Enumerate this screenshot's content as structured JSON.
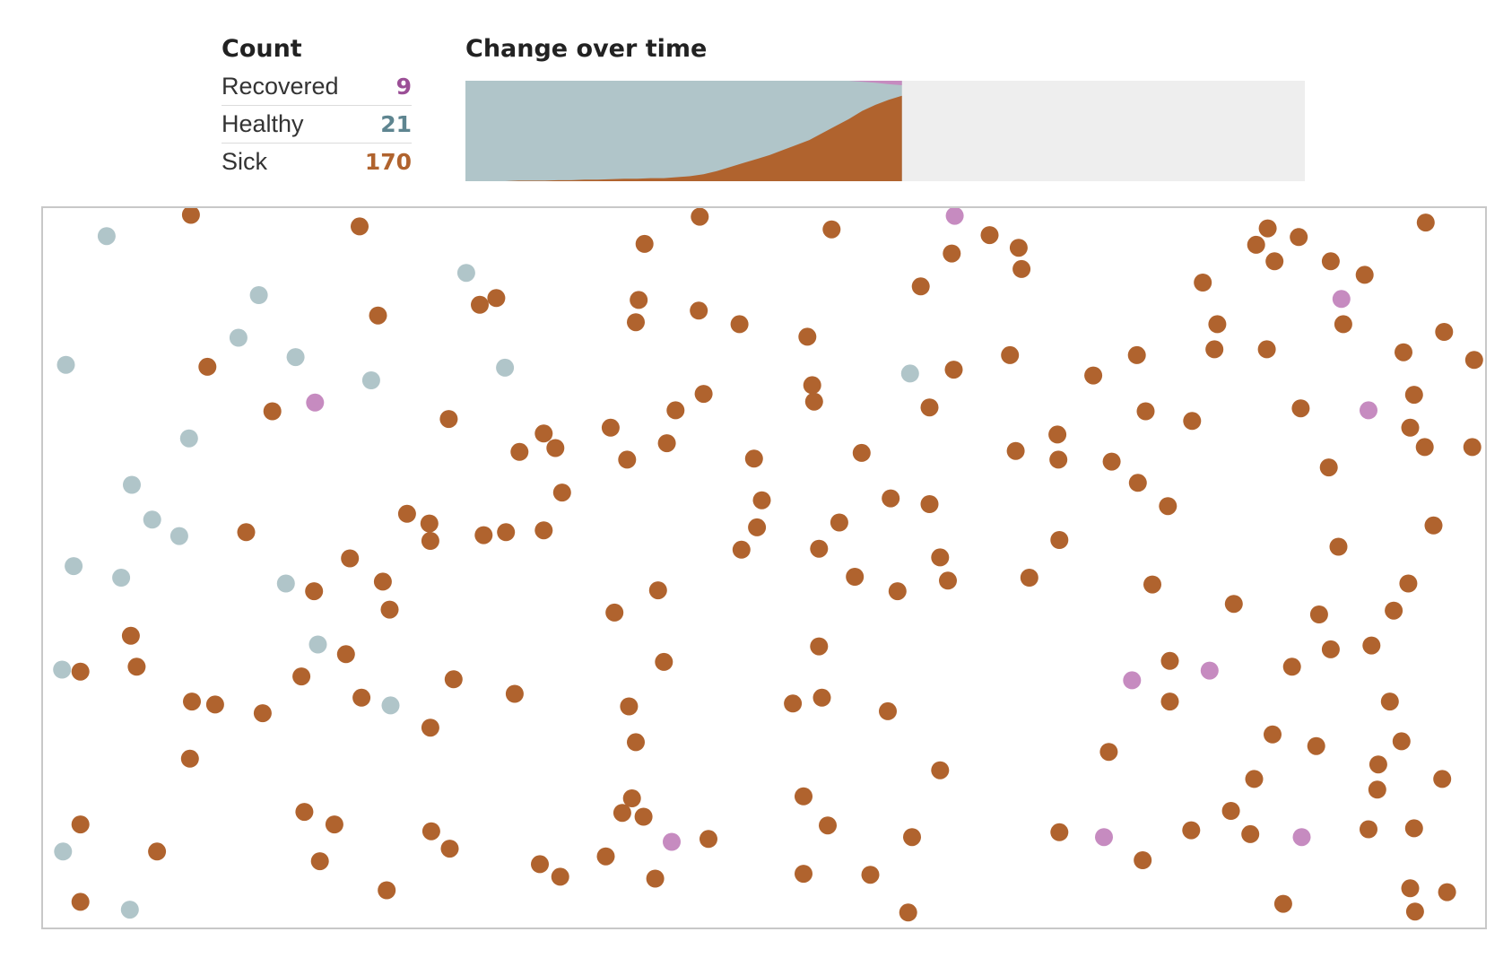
{
  "count": {
    "title": "Count",
    "rows": [
      {
        "label": "Recovered",
        "value": "9",
        "color": "#9b4f96"
      },
      {
        "label": "Healthy",
        "value": "21",
        "color": "#5e8590"
      },
      {
        "label": "Sick",
        "value": "170",
        "color": "#b0632e"
      }
    ]
  },
  "change": {
    "title": "Change over time"
  },
  "colors": {
    "healthy": "#b0c5c9",
    "sick": "#b0632e",
    "recovered": "#c68bc0",
    "empty": "#eeeeee"
  },
  "chart_data": {
    "type": "area",
    "title": "Change over time",
    "total": 200,
    "progress": 0.52,
    "series": [
      {
        "name": "Sick",
        "values": [
          0,
          0,
          0,
          0,
          1,
          1,
          1,
          2,
          2,
          3,
          3,
          4,
          5,
          5,
          6,
          6,
          8,
          10,
          14,
          20,
          28,
          36,
          44,
          52,
          62,
          72,
          82,
          96,
          110,
          124,
          140,
          152,
          162,
          170
        ]
      },
      {
        "name": "Recovered",
        "values": [
          0,
          0,
          0,
          0,
          0,
          0,
          0,
          0,
          0,
          0,
          0,
          0,
          0,
          0,
          0,
          0,
          0,
          0,
          0,
          0,
          0,
          0,
          0,
          0,
          0,
          0,
          0,
          0,
          0,
          0,
          2,
          4,
          7,
          9
        ]
      }
    ]
  },
  "dots": {
    "healthy": [
      [
        110,
        244
      ],
      [
        267,
        305
      ],
      [
        481,
        282
      ],
      [
        246,
        349
      ],
      [
        305,
        369
      ],
      [
        68,
        377
      ],
      [
        383,
        393
      ],
      [
        521,
        380
      ],
      [
        939,
        386
      ],
      [
        195,
        453
      ],
      [
        136,
        501
      ],
      [
        157,
        537
      ],
      [
        185,
        554
      ],
      [
        76,
        585
      ],
      [
        125,
        597
      ],
      [
        295,
        603
      ],
      [
        328,
        666
      ],
      [
        64,
        692
      ],
      [
        403,
        729
      ],
      [
        65,
        880
      ],
      [
        134,
        940
      ]
    ],
    "recovered": [
      [
        985,
        223
      ],
      [
        1384,
        309
      ],
      [
        325,
        416
      ],
      [
        1412,
        424
      ],
      [
        1248,
        693
      ],
      [
        1168,
        703
      ],
      [
        693,
        870
      ],
      [
        1139,
        865
      ],
      [
        1343,
        865
      ]
    ],
    "sick": [
      [
        197,
        222
      ],
      [
        371,
        234
      ],
      [
        722,
        224
      ],
      [
        858,
        237
      ],
      [
        1471,
        230
      ],
      [
        665,
        252
      ],
      [
        1021,
        243
      ],
      [
        1051,
        256
      ],
      [
        1054,
        278
      ],
      [
        982,
        262
      ],
      [
        1308,
        236
      ],
      [
        1340,
        245
      ],
      [
        1296,
        253
      ],
      [
        1315,
        270
      ],
      [
        1373,
        270
      ],
      [
        1408,
        284
      ],
      [
        512,
        308
      ],
      [
        495,
        315
      ],
      [
        659,
        310
      ],
      [
        390,
        326
      ],
      [
        721,
        321
      ],
      [
        656,
        333
      ],
      [
        763,
        335
      ],
      [
        950,
        296
      ],
      [
        1241,
        292
      ],
      [
        1256,
        335
      ],
      [
        1386,
        335
      ],
      [
        1490,
        343
      ],
      [
        833,
        348
      ],
      [
        214,
        379
      ],
      [
        1042,
        367
      ],
      [
        1173,
        367
      ],
      [
        1253,
        361
      ],
      [
        1307,
        361
      ],
      [
        1448,
        364
      ],
      [
        1521,
        372
      ],
      [
        984,
        382
      ],
      [
        1128,
        388
      ],
      [
        838,
        398
      ],
      [
        840,
        415
      ],
      [
        726,
        407
      ],
      [
        697,
        424
      ],
      [
        959,
        421
      ],
      [
        281,
        425
      ],
      [
        1182,
        425
      ],
      [
        1230,
        435
      ],
      [
        1342,
        422
      ],
      [
        1459,
        408
      ],
      [
        463,
        433
      ],
      [
        630,
        442
      ],
      [
        561,
        448
      ],
      [
        573,
        463
      ],
      [
        536,
        467
      ],
      [
        647,
        475
      ],
      [
        688,
        458
      ],
      [
        778,
        474
      ],
      [
        889,
        468
      ],
      [
        1048,
        466
      ],
      [
        1091,
        449
      ],
      [
        1092,
        475
      ],
      [
        1147,
        477
      ],
      [
        1174,
        499
      ],
      [
        1455,
        442
      ],
      [
        1470,
        462
      ],
      [
        1519,
        462
      ],
      [
        1371,
        483
      ],
      [
        580,
        509
      ],
      [
        786,
        517
      ],
      [
        919,
        515
      ],
      [
        959,
        521
      ],
      [
        1205,
        523
      ],
      [
        420,
        531
      ],
      [
        443,
        541
      ],
      [
        444,
        559
      ],
      [
        499,
        553
      ],
      [
        522,
        550
      ],
      [
        561,
        548
      ],
      [
        254,
        550
      ],
      [
        781,
        545
      ],
      [
        866,
        540
      ],
      [
        765,
        568
      ],
      [
        845,
        567
      ],
      [
        1093,
        558
      ],
      [
        1479,
        543
      ],
      [
        1381,
        565
      ],
      [
        361,
        577
      ],
      [
        970,
        576
      ],
      [
        978,
        600
      ],
      [
        395,
        601
      ],
      [
        324,
        611
      ],
      [
        402,
        630
      ],
      [
        882,
        596
      ],
      [
        926,
        611
      ],
      [
        1062,
        597
      ],
      [
        1189,
        604
      ],
      [
        1453,
        603
      ],
      [
        679,
        610
      ],
      [
        634,
        633
      ],
      [
        1273,
        624
      ],
      [
        1361,
        635
      ],
      [
        1438,
        631
      ],
      [
        135,
        657
      ],
      [
        141,
        689
      ],
      [
        83,
        694
      ],
      [
        357,
        676
      ],
      [
        311,
        699
      ],
      [
        845,
        668
      ],
      [
        685,
        684
      ],
      [
        1207,
        683
      ],
      [
        1333,
        689
      ],
      [
        1373,
        671
      ],
      [
        1415,
        667
      ],
      [
        468,
        702
      ],
      [
        531,
        717
      ],
      [
        198,
        725
      ],
      [
        222,
        728
      ],
      [
        271,
        737
      ],
      [
        373,
        721
      ],
      [
        444,
        752
      ],
      [
        649,
        730
      ],
      [
        656,
        767
      ],
      [
        818,
        727
      ],
      [
        848,
        721
      ],
      [
        916,
        735
      ],
      [
        1207,
        725
      ],
      [
        1434,
        725
      ],
      [
        1313,
        759
      ],
      [
        1358,
        771
      ],
      [
        1446,
        766
      ],
      [
        196,
        784
      ],
      [
        970,
        796
      ],
      [
        1144,
        777
      ],
      [
        1294,
        805
      ],
      [
        1422,
        790
      ],
      [
        1421,
        816
      ],
      [
        1488,
        805
      ],
      [
        652,
        825
      ],
      [
        642,
        840
      ],
      [
        664,
        844
      ],
      [
        829,
        823
      ],
      [
        314,
        839
      ],
      [
        345,
        852
      ],
      [
        83,
        852
      ],
      [
        445,
        859
      ],
      [
        464,
        877
      ],
      [
        162,
        880
      ],
      [
        854,
        853
      ],
      [
        941,
        865
      ],
      [
        731,
        867
      ],
      [
        1093,
        860
      ],
      [
        1229,
        858
      ],
      [
        1270,
        838
      ],
      [
        1290,
        862
      ],
      [
        1412,
        857
      ],
      [
        1459,
        856
      ],
      [
        330,
        890
      ],
      [
        557,
        893
      ],
      [
        578,
        906
      ],
      [
        625,
        885
      ],
      [
        676,
        908
      ],
      [
        829,
        903
      ],
      [
        898,
        904
      ],
      [
        1179,
        889
      ],
      [
        83,
        932
      ],
      [
        399,
        920
      ],
      [
        937,
        943
      ],
      [
        1324,
        934
      ],
      [
        1455,
        918
      ],
      [
        1460,
        942
      ],
      [
        1493,
        922
      ]
    ]
  }
}
